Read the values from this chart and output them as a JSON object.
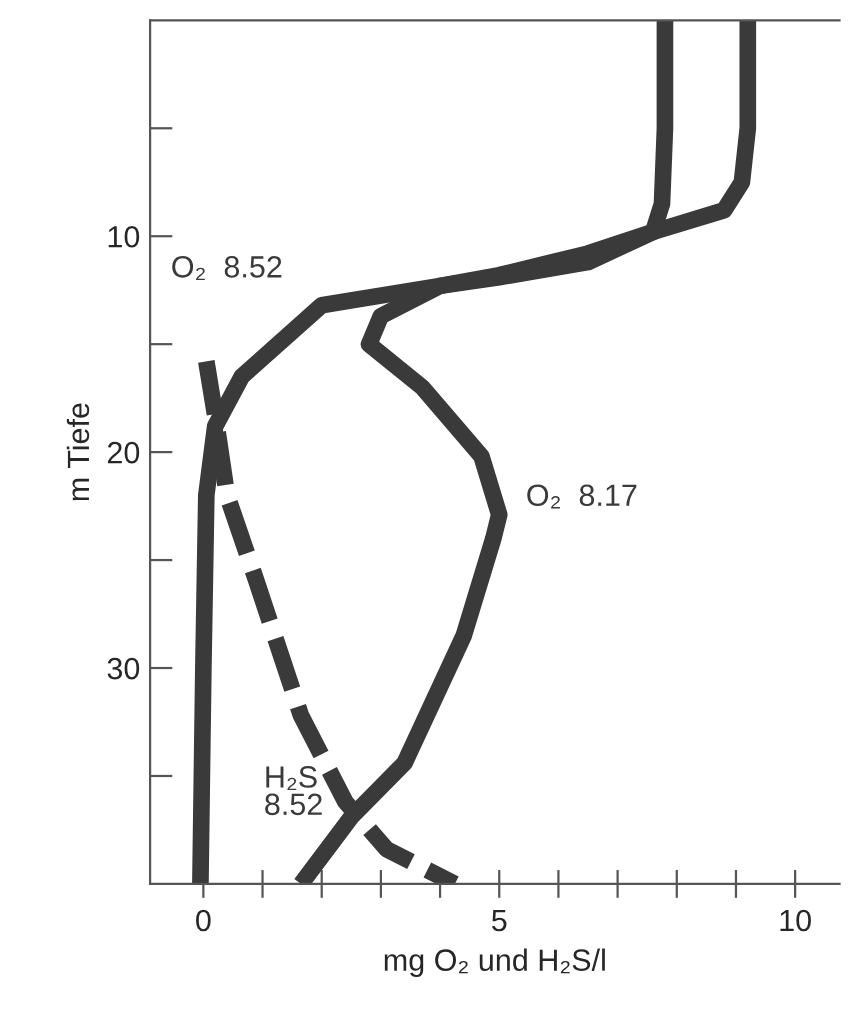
{
  "chart_data": {
    "type": "line",
    "xlabel": "mg O₂ und H₂S/l",
    "ylabel": "m Tiefe",
    "xlim": [
      -0.9,
      10.75
    ],
    "ylim": [
      40,
      0
    ],
    "xticks": [
      {
        "value": 0,
        "label": "0"
      },
      {
        "value": 1,
        "label": null
      },
      {
        "value": 2,
        "label": null
      },
      {
        "value": 3,
        "label": null
      },
      {
        "value": 4,
        "label": null
      },
      {
        "value": 5,
        "label": "5"
      },
      {
        "value": 6,
        "label": null
      },
      {
        "value": 7,
        "label": null
      },
      {
        "value": 8,
        "label": null
      },
      {
        "value": 9,
        "label": null
      },
      {
        "value": 10,
        "label": "10"
      }
    ],
    "yticks": [
      {
        "value": 5,
        "label": null
      },
      10,
      {
        "value": 15,
        "label": null
      },
      20,
      {
        "value": 25,
        "label": null
      },
      30,
      {
        "value": 35,
        "label": null
      }
    ],
    "grid": false,
    "legend": false,
    "marker": "none",
    "series": [
      {
        "name": "O₂  8.52",
        "color": "#3a3a3a",
        "line_style": "solid",
        "x": [
          7.8,
          7.8,
          7.75,
          7.6,
          6.5,
          5.0,
          4.0,
          2.0,
          0.65,
          0.2,
          0.05,
          0.0,
          -0.05
        ],
        "values": [
          0,
          5,
          8.5,
          9.8,
          11.2,
          11.9,
          12.3,
          13.2,
          16.5,
          18.8,
          22,
          30,
          40
        ]
      },
      {
        "name": "O₂  8.17",
        "color": "#3a3a3a",
        "line_style": "solid",
        "x": [
          9.2,
          9.2,
          9.1,
          8.8,
          7.6,
          6.5,
          5.0,
          4.0,
          3.0,
          2.8,
          3.7,
          4.7,
          5.0,
          4.9,
          4.4,
          3.4,
          2.5,
          1.65
        ],
        "values": [
          0,
          5,
          7.5,
          8.8,
          9.8,
          10.8,
          11.8,
          12.3,
          13.7,
          15,
          17,
          20.2,
          22.9,
          24,
          28.5,
          34.4,
          36.9,
          40
        ]
      },
      {
        "name": "H₂S\n8.52",
        "color": "#3a3a3a",
        "line_style": "dashed",
        "x": [
          0.05,
          0.2,
          0.4,
          0.9,
          1.65,
          2.4,
          3.1,
          4.25
        ],
        "values": [
          15.8,
          18.3,
          22,
          26,
          32.2,
          36.2,
          38.4,
          40
        ]
      }
    ]
  }
}
